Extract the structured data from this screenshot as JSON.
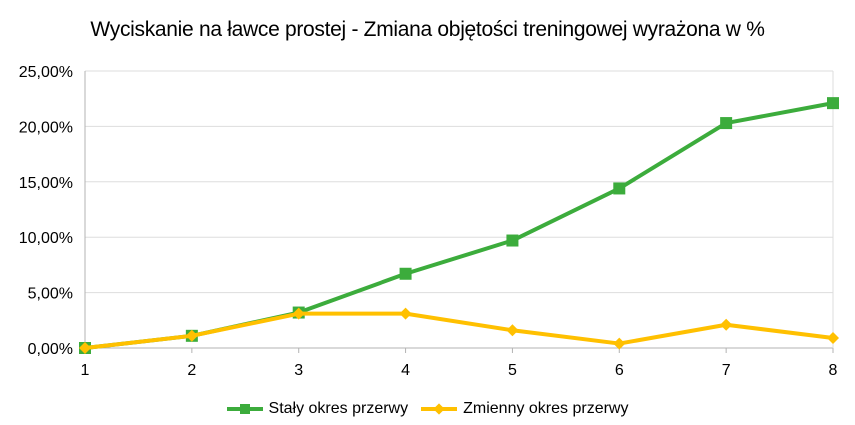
{
  "chart_data": {
    "type": "line",
    "title": "Wyciskanie na ławce prostej - Zmiana objętości treningowej wyrażona w %",
    "xlabel": "",
    "ylabel": "",
    "x": [
      1,
      2,
      3,
      4,
      5,
      6,
      7,
      8
    ],
    "ylim": [
      0,
      25
    ],
    "yticks": [
      "0,00%",
      "5,00%",
      "10,00%",
      "15,00%",
      "20,00%",
      "25,00%"
    ],
    "xticks": [
      "1",
      "2",
      "3",
      "4",
      "5",
      "6",
      "7",
      "8"
    ],
    "grid": true,
    "legend_position": "bottom",
    "series": [
      {
        "name": "Stały okres przerwy",
        "color": "#3cac3c",
        "marker": "square",
        "values": [
          0,
          1.1,
          3.2,
          6.7,
          9.7,
          14.4,
          20.3,
          22.1
        ]
      },
      {
        "name": "Zmienny okres przerwy",
        "color": "#ffc000",
        "marker": "diamond",
        "values": [
          0,
          1.1,
          3.1,
          3.1,
          1.6,
          0.4,
          2.1,
          0.9
        ]
      }
    ]
  },
  "legend": {
    "s0": "Stały okres przerwy",
    "s1": "Zmienny okres przerwy"
  }
}
